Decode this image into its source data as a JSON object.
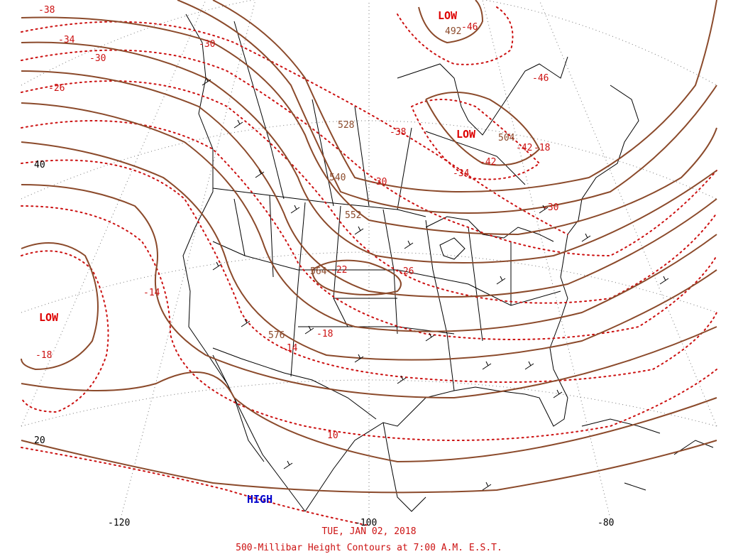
{
  "caption": {
    "date": "TUE, JAN 02, 2018",
    "title": "500-Millibar Height Contours at 7:00 A.M. E.S.T."
  },
  "colors": {
    "height_contour": "#8b4a2b",
    "temperature_contour": "#cc1111",
    "map_lines": "#000000",
    "grid": "#777777",
    "low_label": "#dd0000",
    "high_label": "#0000cc"
  },
  "legend_symbols": {
    "low": "LOW",
    "high": "HIGH"
  },
  "axis_labels": {
    "longitude": [
      "-120",
      "-100",
      "-80"
    ],
    "latitude": [
      "40",
      "20"
    ]
  },
  "pressure_labels": [
    {
      "text": "LOW",
      "kind": "low"
    },
    {
      "text": "LOW",
      "kind": "low"
    },
    {
      "text": "LOW",
      "kind": "low"
    },
    {
      "text": "HIGH",
      "kind": "high"
    }
  ],
  "height_labels": [
    "492",
    "504",
    "528",
    "540",
    "552",
    "564",
    "576"
  ],
  "temperature_labels": [
    "-38",
    "-46",
    "-34",
    "-30",
    "-26",
    "-30",
    "-30",
    "-38",
    "-42",
    "-46",
    "-42",
    "-34",
    "-30",
    "-18",
    "-22",
    "-26",
    "-14",
    "-18",
    "-18",
    "-14",
    "10"
  ]
}
